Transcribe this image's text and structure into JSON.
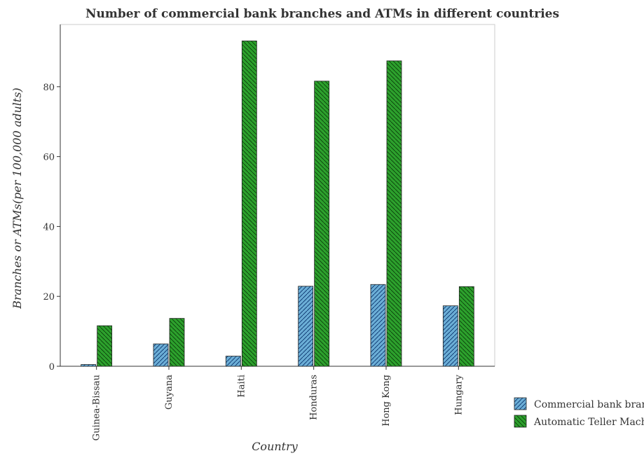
{
  "chart_data": {
    "type": "bar",
    "title": "Number of commercial bank branches and ATMs in different countries",
    "xlabel": "Country",
    "ylabel": "Branches or ATMs(per 100,000 adults)",
    "categories": [
      "Guinea-Bissau",
      "Guyana",
      "Haiti",
      "Honduras",
      "Hong Kong",
      "Hungary"
    ],
    "series": [
      {
        "name": "Commercial bank branches",
        "color": "#6baed6",
        "values": [
          0.5,
          6.4,
          2.9,
          22.9,
          23.4,
          17.3
        ]
      },
      {
        "name": "Automatic Teller Machines",
        "color": "#2ca02c",
        "values": [
          11.6,
          13.7,
          93.1,
          81.6,
          87.4,
          22.8
        ]
      }
    ],
    "ylim": [
      0,
      97.8
    ],
    "yticks": [
      0,
      20,
      40,
      60,
      80
    ],
    "ytick_labels": [
      "0",
      "20",
      "40",
      "60",
      "80"
    ],
    "grid": false,
    "legend_position": "bottom-right"
  }
}
